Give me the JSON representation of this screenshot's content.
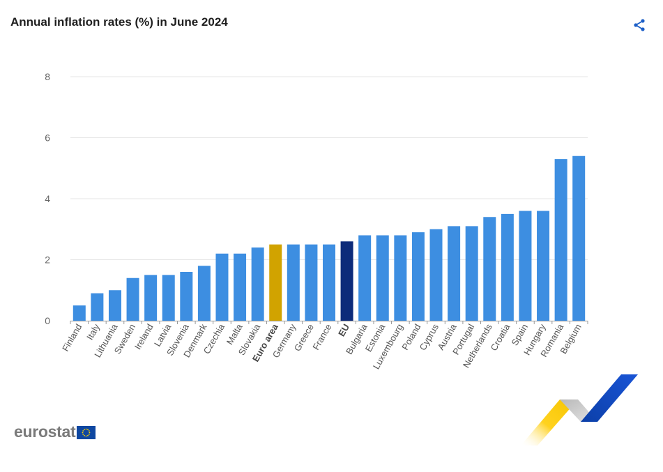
{
  "title": "Annual inflation rates (%) in June 2024",
  "logo": {
    "text": "eurostat"
  },
  "icons": {
    "share": "share-icon",
    "flag": "eu-flag-icon",
    "ribbon": "eurostat-ribbon-graphic"
  },
  "colors": {
    "bar": "#3d8ee1",
    "euro_area": "#d1a300",
    "eu": "#0d2b7a",
    "grid": "#e6e6e6",
    "share": "#1d5fc7"
  },
  "chart_data": {
    "type": "bar",
    "title": "Annual inflation rates (%) in June 2024",
    "xlabel": "",
    "ylabel": "",
    "ylim": [
      0,
      8
    ],
    "yticks": [
      0,
      2,
      4,
      6,
      8
    ],
    "grid": true,
    "categories": [
      "Finland",
      "Italy",
      "Lithuania",
      "Sweden",
      "Ireland",
      "Latvia",
      "Slovenia",
      "Denmark",
      "Czechia",
      "Malta",
      "Slovakia",
      "Euro area",
      "Germany",
      "Greece",
      "France",
      "EU",
      "Bulgaria",
      "Estonia",
      "Luxembourg",
      "Poland",
      "Cyprus",
      "Austria",
      "Portugal",
      "Netherlands",
      "Croatia",
      "Spain",
      "Hungary",
      "Romania",
      "Belgium"
    ],
    "values": [
      0.5,
      0.9,
      1.0,
      1.4,
      1.5,
      1.5,
      1.6,
      1.8,
      2.2,
      2.2,
      2.4,
      2.5,
      2.5,
      2.5,
      2.5,
      2.6,
      2.8,
      2.8,
      2.8,
      2.9,
      3.0,
      3.1,
      3.1,
      3.4,
      3.5,
      3.6,
      3.6,
      5.3,
      5.4
    ],
    "highlight": {
      "Euro area": "euro_area",
      "EU": "eu"
    },
    "bold_categories": [
      "Euro area",
      "EU"
    ]
  }
}
